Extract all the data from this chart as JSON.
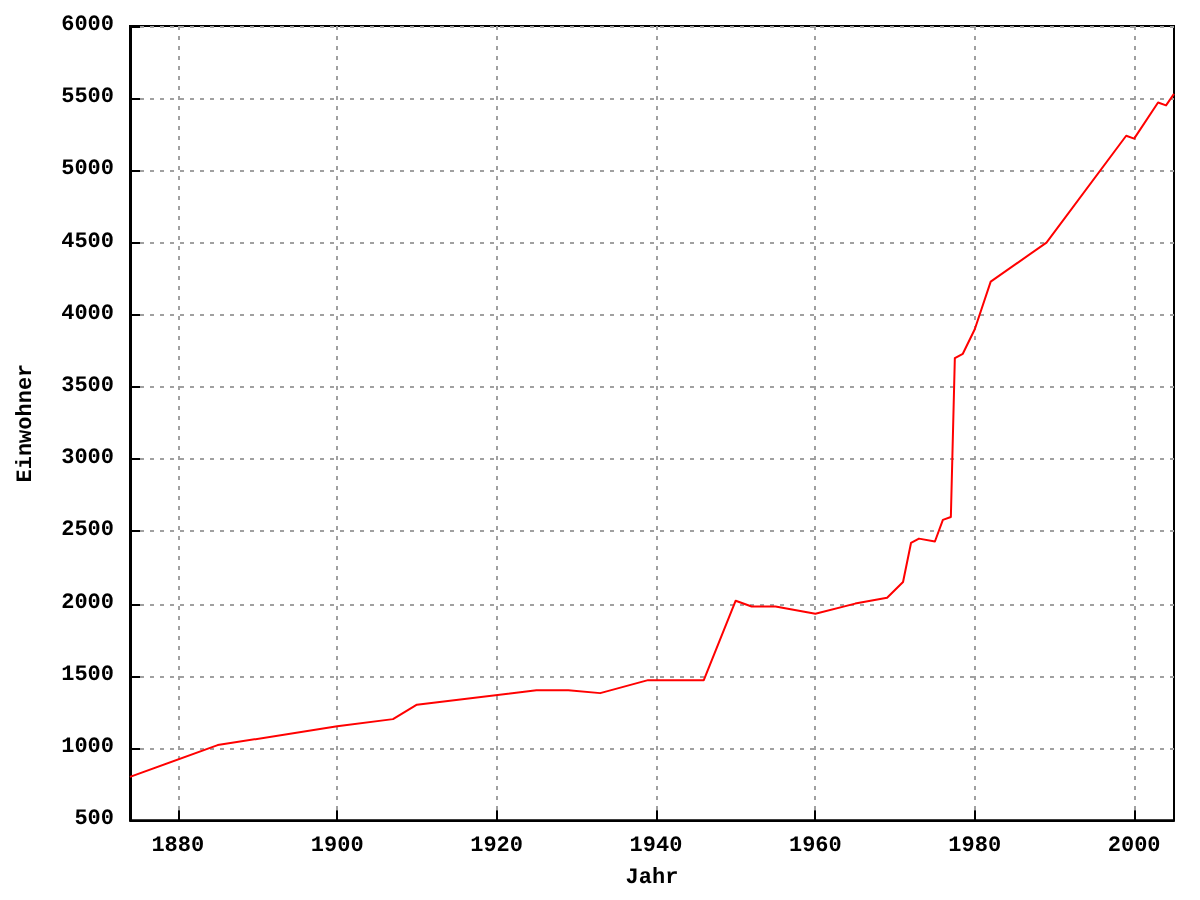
{
  "chart_data": {
    "type": "line",
    "xlabel": "Jahr",
    "ylabel": "Einwohner",
    "x": [
      1874,
      1885,
      1900,
      1907,
      1910,
      1925,
      1929,
      1933,
      1939,
      1946,
      1950,
      1952,
      1955,
      1960,
      1965,
      1969,
      1971,
      1972,
      1973,
      1975,
      1976,
      1977,
      1977.5,
      1978.5,
      1980,
      1982,
      1989,
      1999,
      2000,
      2003,
      2004,
      2005
    ],
    "series": [
      {
        "color": "#ff0000",
        "values": [
          800,
          1020,
          1150,
          1200,
          1300,
          1400,
          1400,
          1380,
          1470,
          1470,
          2020,
          1980,
          1980,
          1930,
          2000,
          2040,
          2150,
          2420,
          2450,
          2430,
          2580,
          2600,
          3700,
          3730,
          3900,
          4230,
          4500,
          5240,
          5220,
          5470,
          5450,
          5530
        ]
      }
    ],
    "xlim": [
      1874,
      2005
    ],
    "xticks": [
      1880,
      1900,
      1920,
      1940,
      1960,
      1980,
      2000
    ],
    "ylim": [
      500,
      6000
    ],
    "yticks": [
      500,
      1000,
      1500,
      2000,
      2500,
      3000,
      3500,
      4000,
      4500,
      5000,
      5500,
      6000
    ],
    "grid": true,
    "marker": "none",
    "line_style": "solid"
  }
}
